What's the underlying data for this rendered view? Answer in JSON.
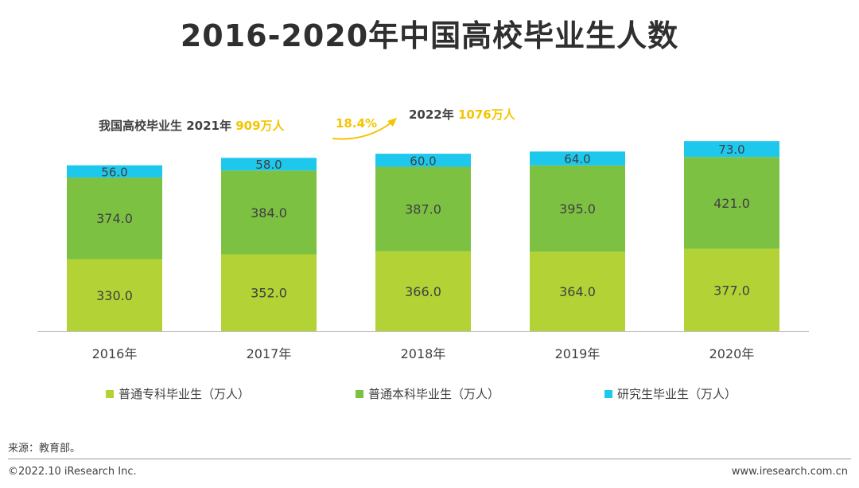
{
  "title": "2016-2020年中国高校毕业生人数",
  "annotation": {
    "left_prefix": "我国高校毕业生 2021年 ",
    "left_value": "909万人",
    "growth": "18.4%",
    "right_prefix": "2022年 ",
    "right_value": "1076万人"
  },
  "legend": {
    "item1": "普通专科毕业生（万人）",
    "item2": "普通本科毕业生（万人）",
    "item3": "研究生毕业生（万人）"
  },
  "source": "来源：教育部。",
  "footer": {
    "copyright": "©2022.10 iResearch Inc.",
    "website": "www.iresearch.com.cn"
  },
  "colors": {
    "zhuanke": "#b2d235",
    "benke": "#7dc143",
    "yanjiusheng": "#1ec8ed",
    "accent": "#f5c400"
  },
  "chart_data": {
    "type": "bar",
    "stacked": true,
    "categories": [
      "2016年",
      "2017年",
      "2018年",
      "2019年",
      "2020年"
    ],
    "series": [
      {
        "name": "普通专科毕业生（万人）",
        "values": [
          330.0,
          352.0,
          366.0,
          364.0,
          377.0
        ]
      },
      {
        "name": "普通本科毕业生（万人）",
        "values": [
          374.0,
          384.0,
          387.0,
          395.0,
          421.0
        ]
      },
      {
        "name": "研究生毕业生（万人）",
        "values": [
          56.0,
          58.0,
          60.0,
          64.0,
          73.0
        ]
      }
    ],
    "labels": [
      [
        "330.0",
        "352.0",
        "366.0",
        "364.0",
        "377.0"
      ],
      [
        "374.0",
        "384.0",
        "387.0",
        "395.0",
        "421.0"
      ],
      [
        "56.0",
        "58.0",
        "60.0",
        "64.0",
        "73.0"
      ]
    ],
    "ylim": [
      0,
      900
    ],
    "grid": false,
    "legend_position": "bottom"
  }
}
